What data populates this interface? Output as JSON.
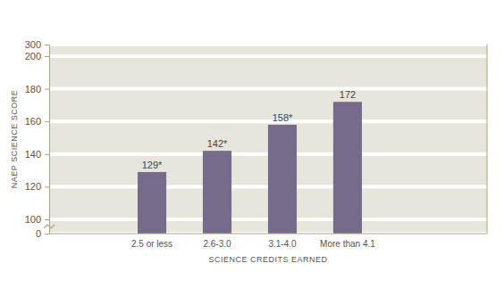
{
  "chart_data": {
    "type": "bar",
    "x_label": "SCIENCE CREDITS EARNED",
    "y_label": "NAEP SCIENCE SCORE",
    "categories": [
      "2.5 or less",
      "2.6-3.0",
      "3.1-4.0",
      "More than 4.1"
    ],
    "values": [
      129,
      142,
      158,
      172
    ],
    "value_labels": [
      "129*",
      "142*",
      "158*",
      "172"
    ],
    "color": "#776b8c",
    "ylim": [
      0,
      300
    ],
    "yticks": [
      0,
      100,
      120,
      140,
      160,
      180,
      200,
      300
    ],
    "grid": true,
    "data_labels": true
  }
}
